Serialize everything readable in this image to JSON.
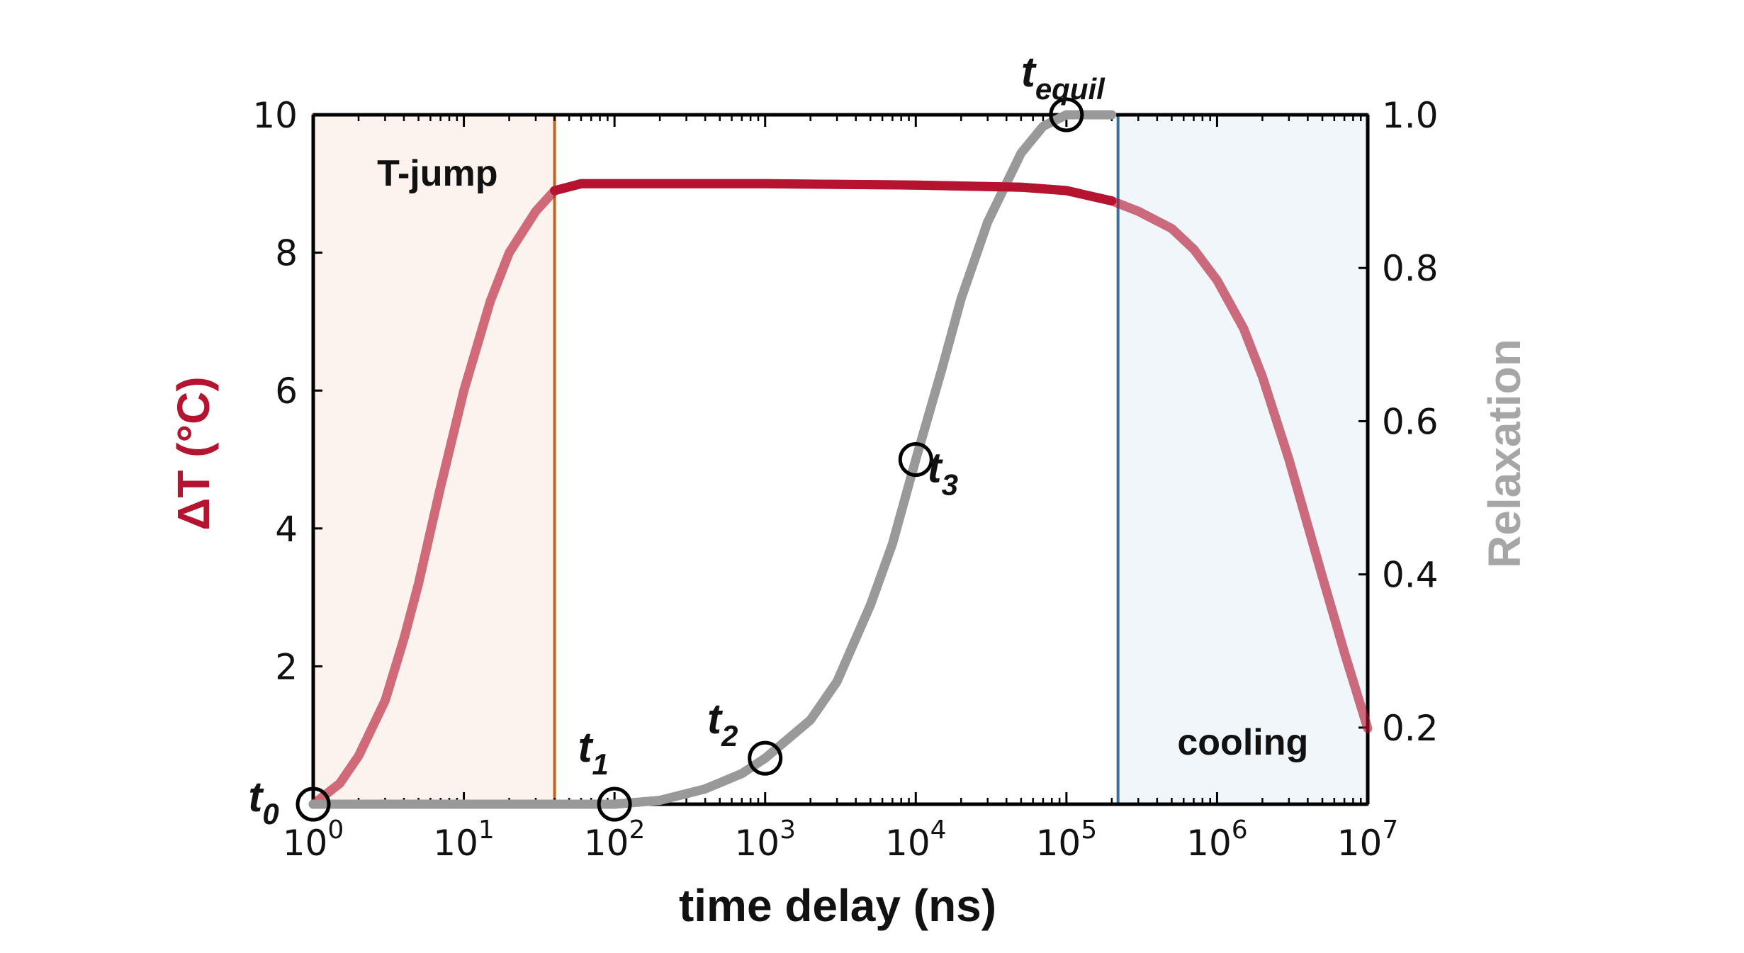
{
  "chart_data": {
    "type": "line",
    "x_scale": "log",
    "xlabel": "time delay (ns)",
    "ylabel_left": "ΔT (°C)",
    "ylabel_right": "Relaxation",
    "xlim": [
      1,
      10000000
    ],
    "ylim_left": [
      0,
      10
    ],
    "ylim_right": [
      0.1,
      1.0
    ],
    "x_ticks": [
      {
        "value": 1,
        "base": "10",
        "exp": "0"
      },
      {
        "value": 10,
        "base": "10",
        "exp": "1"
      },
      {
        "value": 100,
        "base": "10",
        "exp": "2"
      },
      {
        "value": 1000,
        "base": "10",
        "exp": "3"
      },
      {
        "value": 10000,
        "base": "10",
        "exp": "4"
      },
      {
        "value": 100000,
        "base": "10",
        "exp": "5"
      },
      {
        "value": 1000000,
        "base": "10",
        "exp": "6"
      },
      {
        "value": 10000000,
        "base": "10",
        "exp": "7"
      }
    ],
    "y_left_ticks": [
      {
        "value": 2,
        "label": "2"
      },
      {
        "value": 4,
        "label": "4"
      },
      {
        "value": 6,
        "label": "6"
      },
      {
        "value": 8,
        "label": "8"
      },
      {
        "value": 10,
        "label": "10"
      }
    ],
    "y_right_ticks": [
      {
        "value": 0.2,
        "label": "0.2"
      },
      {
        "value": 0.4,
        "label": "0.4"
      },
      {
        "value": 0.6,
        "label": "0.6"
      },
      {
        "value": 0.8,
        "label": "0.8"
      },
      {
        "value": 1.0,
        "label": "1.0"
      }
    ],
    "series": [
      {
        "axis": "left",
        "color": "#b5132f",
        "x": [
          1,
          1.5,
          2,
          3,
          4,
          5,
          7,
          10,
          15,
          20,
          30,
          40,
          60,
          100,
          1000,
          10000,
          50000,
          100000,
          200000,
          300000,
          500000,
          700000,
          1000000,
          1500000,
          2000000,
          3000000,
          5000000,
          7000000,
          10000000
        ],
        "values": [
          0,
          0.3,
          0.7,
          1.5,
          2.4,
          3.2,
          4.6,
          6.0,
          7.3,
          8.0,
          8.6,
          8.9,
          9.0,
          9.0,
          9.0,
          8.98,
          8.95,
          8.9,
          8.75,
          8.6,
          8.35,
          8.05,
          7.6,
          6.9,
          6.2,
          5.0,
          3.3,
          2.2,
          1.1
        ]
      },
      {
        "axis": "right",
        "color": "#999999",
        "x": [
          1,
          10,
          50,
          100,
          200,
          400,
          700,
          1000,
          2000,
          3000,
          5000,
          7000,
          10000,
          15000,
          20000,
          30000,
          50000,
          70000,
          100000,
          200000
        ],
        "values": [
          0.1,
          0.1,
          0.1,
          0.1,
          0.105,
          0.12,
          0.14,
          0.16,
          0.21,
          0.26,
          0.36,
          0.44,
          0.55,
          0.67,
          0.76,
          0.86,
          0.95,
          0.985,
          1.0,
          1.0
        ]
      }
    ],
    "regions": [
      {
        "label": "T-jump",
        "x_start": 1,
        "x_end": 40,
        "stroke": "#c0651f",
        "fill": "#fcf3ee"
      },
      {
        "label": "cooling",
        "x_start": 220000,
        "x_end": 10000000,
        "stroke": "#3a6f99",
        "fill": "#f1f6fb"
      }
    ],
    "annotations": [
      {
        "base": "t",
        "sub": "0",
        "x": 1,
        "y_right": 0.1
      },
      {
        "base": "t",
        "sub": "1",
        "x": 100,
        "y_right": 0.1
      },
      {
        "base": "t",
        "sub": "2",
        "x": 1000,
        "y_right": 0.16
      },
      {
        "base": "t",
        "sub": "3",
        "x": 10000,
        "y_right": 0.55
      },
      {
        "base": "t",
        "sub": "equil",
        "x": 100000,
        "y_right": 1.0
      }
    ],
    "legend": "none",
    "grid": false
  }
}
